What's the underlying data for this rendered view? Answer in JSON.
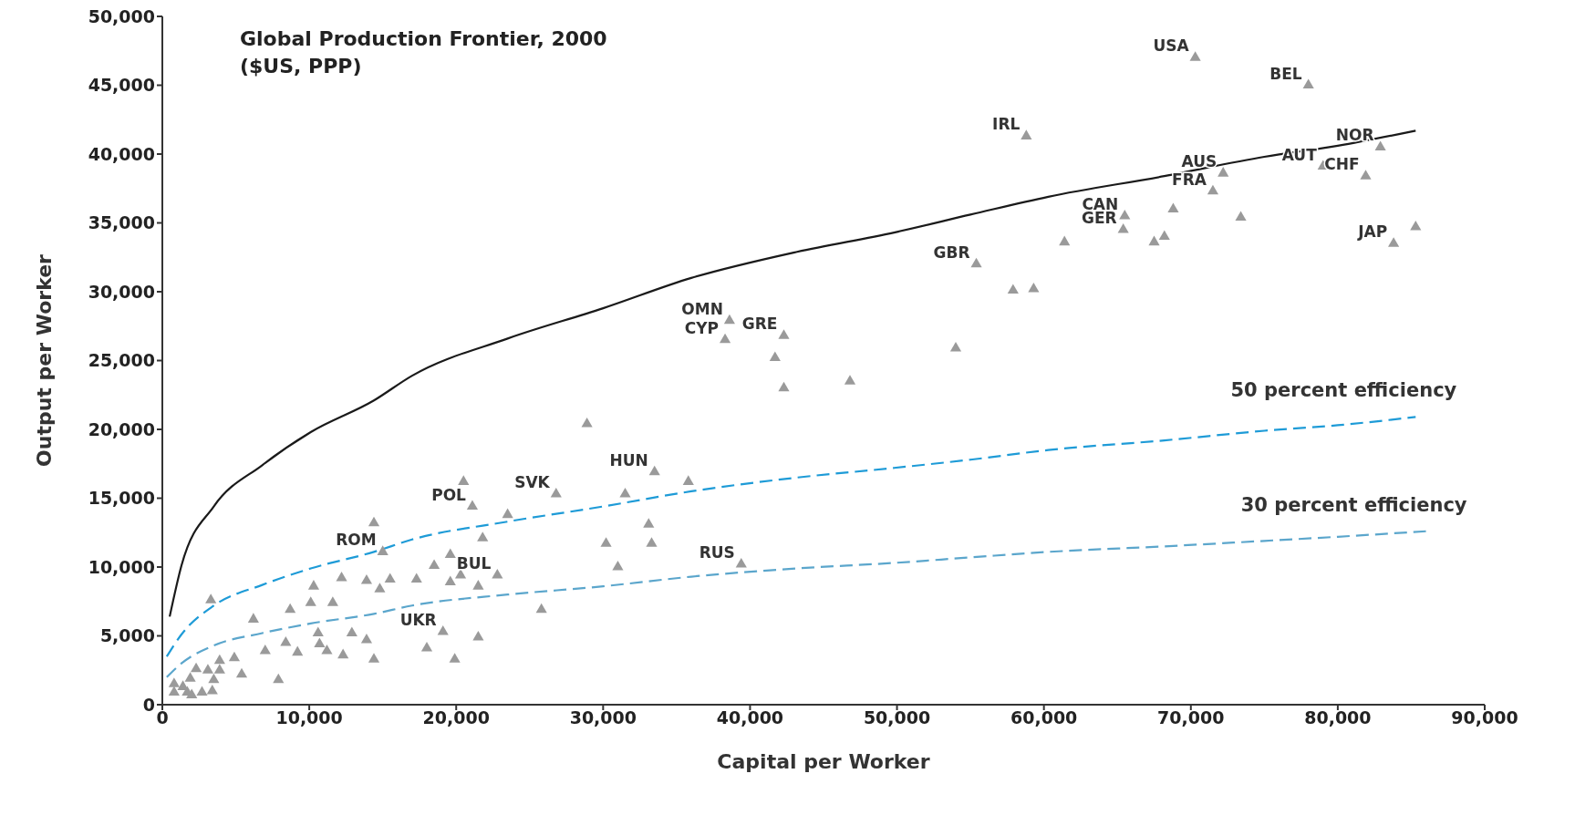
{
  "chart_data": {
    "type": "scatter",
    "title": "Global Production Frontier, 2000\n($US, PPP)",
    "xlabel": "Capital per Worker",
    "ylabel": "Output per Worker",
    "xlim": [
      0,
      90000
    ],
    "xticks": [
      0,
      {
        "value": 10000,
        "label": "10,000"
      },
      {
        "value": 20000,
        "label": "20,000"
      },
      {
        "value": 30000,
        "label": "30,000"
      },
      {
        "value": 40000,
        "label": "40,000"
      },
      {
        "value": 50000,
        "label": "50,000"
      },
      {
        "value": 60000,
        "label": "60,000"
      },
      {
        "value": 70000,
        "label": "70,000"
      },
      {
        "value": 80000,
        "label": "80,000"
      },
      {
        "value": 90000,
        "label": "90,000"
      }
    ],
    "ylim": [
      0,
      50000
    ],
    "yticks": [
      0,
      {
        "value": 5000,
        "label": "5,000"
      },
      {
        "value": 10000,
        "label": "10,000"
      },
      {
        "value": 15000,
        "label": "15,000"
      },
      {
        "value": 20000,
        "label": "20,000"
      },
      {
        "value": 25000,
        "label": "25,000"
      },
      {
        "value": 30000,
        "label": "30,000"
      },
      {
        "value": 35000,
        "label": "35,000"
      },
      {
        "value": 40000,
        "label": "40,000"
      },
      {
        "value": 45000,
        "label": "45,000"
      },
      {
        "value": 50000,
        "label": "50,000"
      }
    ],
    "grid": false,
    "legend": false,
    "series": [
      {
        "type": "scatter",
        "color": "#9a9a9a",
        "marker": "triangle",
        "x": [
          70300,
          78000,
          58800,
          82900,
          72200,
          79000,
          81900,
          71500,
          65500,
          65400,
          61400,
          55400,
          83800,
          85300,
          68800,
          73400,
          68200,
          67500,
          57900,
          59300,
          54000,
          38600,
          38300,
          42300,
          41700,
          42300,
          46800,
          28900,
          33500,
          35800,
          31500,
          26800,
          33100,
          33300,
          30200,
          31000,
          39400,
          21100,
          20500,
          23500,
          21800,
          14400,
          15000,
          12200,
          19600,
          18500,
          20300,
          19600,
          21500,
          22800,
          17300,
          15500,
          13900,
          14800,
          10300,
          3300,
          10100,
          11600,
          8700,
          6200,
          25800,
          21500,
          19100,
          10600,
          12900,
          13900,
          8400,
          7000,
          10700,
          11200,
          9200,
          12300,
          14400,
          18000,
          19900,
          7900,
          5400,
          4900,
          3900,
          3900,
          3100,
          2300,
          1900,
          3500,
          1400,
          800,
          800,
          1700,
          3400,
          2700,
          2000
        ],
        "values": [
          47000,
          45000,
          41300,
          40500,
          38600,
          39100,
          38400,
          37300,
          35500,
          34500,
          33600,
          32000,
          33500,
          34700,
          36000,
          35400,
          34000,
          33600,
          30100,
          30200,
          25900,
          27900,
          26500,
          26800,
          25200,
          23000,
          23500,
          20400,
          16900,
          16200,
          15300,
          15300,
          13100,
          11700,
          11700,
          10000,
          10200,
          14400,
          16200,
          13800,
          12100,
          13200,
          11100,
          9200,
          10900,
          10100,
          9400,
          8900,
          8600,
          9400,
          9100,
          9100,
          9000,
          8400,
          8600,
          7600,
          7400,
          7400,
          6900,
          6200,
          6900,
          4900,
          5300,
          5200,
          5200,
          4700,
          4500,
          3900,
          4400,
          3900,
          3800,
          3600,
          3300,
          4100,
          3300,
          1800,
          2200,
          3400,
          3200,
          2500,
          2500,
          2600,
          1900,
          1800,
          1300,
          1500,
          900,
          900,
          1000,
          900,
          700
        ]
      },
      {
        "type": "line",
        "color": "#1a1a1a",
        "line_style": "solid",
        "marker": "none",
        "x": [
          500,
          1300,
          3500,
          6800,
          10100,
          14400,
          17000,
          23500,
          30000,
          36000,
          43200,
          49800,
          55000,
          60300,
          68200,
          75000,
          80000,
          85300
        ],
        "values": [
          6400,
          10100,
          14400,
          17400,
          19800,
          22100,
          23900,
          26600,
          28800,
          31000,
          32900,
          34300,
          35600,
          36900,
          38400,
          39800,
          40600,
          41700
        ]
      },
      {
        "type": "line",
        "name": "50 percent efficiency",
        "color": "#1e9bd7",
        "line_style": "dashed",
        "marker": "none",
        "x": [
          300,
          1300,
          3500,
          6800,
          10100,
          14400,
          17000,
          23500,
          30000,
          36000,
          43200,
          49800,
          55000,
          60300,
          68200,
          75000,
          80000,
          85300
        ],
        "values": [
          3500,
          5100,
          7200,
          8700,
          9900,
          11100,
          12000,
          13300,
          14400,
          15500,
          16500,
          17200,
          17800,
          18500,
          19200,
          19900,
          20300,
          20900
        ]
      },
      {
        "type": "line",
        "name": "30 percent efficiency",
        "color": "#5ba6cc",
        "line_style": "dashed",
        "marker": "none",
        "x": [
          300,
          1300,
          3500,
          6800,
          10100,
          14400,
          17000,
          23500,
          30000,
          36000,
          43200,
          49800,
          55000,
          60300,
          68200,
          75000,
          80000,
          86000
        ],
        "values": [
          2000,
          3000,
          4300,
          5200,
          5900,
          6600,
          7200,
          8000,
          8600,
          9300,
          9900,
          10300,
          10700,
          11100,
          11500,
          11900,
          12200,
          12600
        ]
      }
    ],
    "annotations": [
      {
        "text": "USA",
        "x": 70300,
        "y": 47000
      },
      {
        "text": "BEL",
        "x": 78000,
        "y": 45000
      },
      {
        "text": "IRL",
        "x": 58800,
        "y": 41300
      },
      {
        "text": "NOR",
        "x": 82900,
        "y": 40500
      },
      {
        "text": "AUS",
        "x": 72200,
        "y": 38600
      },
      {
        "text": "AUT",
        "x": 79000,
        "y": 39100
      },
      {
        "text": "CHF",
        "x": 81900,
        "y": 38400
      },
      {
        "text": "FRA",
        "x": 71500,
        "y": 37300
      },
      {
        "text": "CAN",
        "x": 65500,
        "y": 35500
      },
      {
        "text": "GER",
        "x": 65400,
        "y": 34500
      },
      {
        "text": "GBR",
        "x": 55400,
        "y": 32000
      },
      {
        "text": "JAP",
        "x": 83800,
        "y": 33500
      },
      {
        "text": "OMN",
        "x": 38600,
        "y": 27900
      },
      {
        "text": "CYP",
        "x": 38300,
        "y": 26500
      },
      {
        "text": "GRE",
        "x": 42300,
        "y": 26800
      },
      {
        "text": "HUN",
        "x": 33500,
        "y": 16900
      },
      {
        "text": "SVK",
        "x": 26800,
        "y": 15300
      },
      {
        "text": "RUS",
        "x": 39400,
        "y": 10200
      },
      {
        "text": "POL",
        "x": 21100,
        "y": 14400
      },
      {
        "text": "ROM",
        "x": 15000,
        "y": 11100
      },
      {
        "text": "BUL",
        "x": 22800,
        "y": 9400
      },
      {
        "text": "UKR",
        "x": 19100,
        "y": 5300
      }
    ]
  }
}
